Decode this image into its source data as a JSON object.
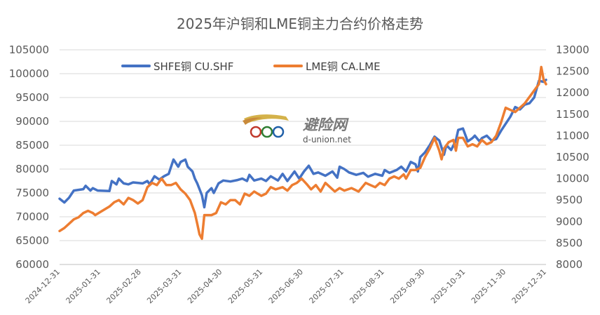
{
  "chart_data": {
    "type": "line",
    "title": "2025年沪铜和LME铜主力合约价格走势",
    "x": [
      "2024-12-31",
      "2025-01-31",
      "2025-02-28",
      "2025-03-31",
      "2025-04-30",
      "2025-05-31",
      "2025-06-30",
      "2025-07-31",
      "2025-08-31",
      "2025-09-30",
      "2025-10-31",
      "2025-11-30",
      "2025-12-31"
    ],
    "y_left": {
      "ylim": [
        60000,
        105000
      ],
      "ticks": [
        "60000",
        "65000",
        "70000",
        "75000",
        "80000",
        "85000",
        "90000",
        "95000",
        "100000",
        "105000"
      ]
    },
    "y_right": {
      "ylim": [
        8000,
        13000
      ],
      "ticks": [
        "8000",
        "8500",
        "9000",
        "9500",
        "10000",
        "10500",
        "11000",
        "11500",
        "12000",
        "12500",
        "13000"
      ]
    },
    "legend_position": "top-left",
    "grid": "horizontal",
    "series": [
      {
        "name": "SHFE铜 CU.SHF",
        "axis": "left",
        "color": "#4472C4",
        "points": [
          [
            0,
            73800
          ],
          [
            2,
            73000
          ],
          [
            4,
            74000
          ],
          [
            6,
            75500
          ],
          [
            10,
            75800
          ],
          [
            11,
            76500
          ],
          [
            13,
            75500
          ],
          [
            14,
            76000
          ],
          [
            16,
            75500
          ],
          [
            21,
            75400
          ],
          [
            22,
            77500
          ],
          [
            24,
            76800
          ],
          [
            25,
            78000
          ],
          [
            27,
            77000
          ],
          [
            29,
            76800
          ],
          [
            31,
            77200
          ],
          [
            35,
            77000
          ],
          [
            37,
            77500
          ],
          [
            38,
            76800
          ],
          [
            40,
            78500
          ],
          [
            42,
            77800
          ],
          [
            44,
            78500
          ],
          [
            46,
            79000
          ],
          [
            48,
            82000
          ],
          [
            50,
            80500
          ],
          [
            51,
            81500
          ],
          [
            53,
            82000
          ],
          [
            54,
            80500
          ],
          [
            55,
            80000
          ],
          [
            56,
            79500
          ],
          [
            57,
            78000
          ],
          [
            58,
            77000
          ],
          [
            60,
            74500
          ],
          [
            61,
            72000
          ],
          [
            62,
            75000
          ],
          [
            63,
            75500
          ],
          [
            64,
            76000
          ],
          [
            65,
            75000
          ],
          [
            67,
            77000
          ],
          [
            69,
            77600
          ],
          [
            72,
            77400
          ],
          [
            75,
            77700
          ],
          [
            77,
            78000
          ],
          [
            79,
            77500
          ],
          [
            80,
            78800
          ],
          [
            82,
            77600
          ],
          [
            85,
            78000
          ],
          [
            87,
            77500
          ],
          [
            89,
            78500
          ],
          [
            92,
            77600
          ],
          [
            94,
            79000
          ],
          [
            96,
            77500
          ],
          [
            99,
            79500
          ],
          [
            101,
            78000
          ],
          [
            103,
            79500
          ],
          [
            105,
            80700
          ],
          [
            107,
            79000
          ],
          [
            109,
            79300
          ],
          [
            112,
            78600
          ],
          [
            115,
            79500
          ],
          [
            117,
            78200
          ],
          [
            118,
            80500
          ],
          [
            120,
            80000
          ],
          [
            122,
            79300
          ],
          [
            125,
            78800
          ],
          [
            128,
            79200
          ],
          [
            130,
            78400
          ],
          [
            133,
            79000
          ],
          [
            136,
            78600
          ],
          [
            137,
            79800
          ],
          [
            139,
            79200
          ],
          [
            142,
            79800
          ],
          [
            144,
            80500
          ],
          [
            146,
            79500
          ],
          [
            148,
            81500
          ],
          [
            150,
            81000
          ],
          [
            151,
            79500
          ],
          [
            152,
            82500
          ],
          [
            154,
            83500
          ],
          [
            156,
            85000
          ],
          [
            158,
            86800
          ],
          [
            160,
            86000
          ],
          [
            161,
            84500
          ],
          [
            162,
            83000
          ],
          [
            163,
            85000
          ],
          [
            165,
            84000
          ],
          [
            167,
            86000
          ],
          [
            168,
            88200
          ],
          [
            170,
            88500
          ],
          [
            172,
            85800
          ],
          [
            174,
            86500
          ],
          [
            175,
            87000
          ],
          [
            177,
            85800
          ],
          [
            178,
            86500
          ],
          [
            180,
            87000
          ],
          [
            182,
            86000
          ],
          [
            184,
            86300
          ],
          [
            186,
            88000
          ],
          [
            188,
            89500
          ],
          [
            190,
            91000
          ],
          [
            192,
            93000
          ],
          [
            194,
            92500
          ],
          [
            196,
            93500
          ],
          [
            198,
            93800
          ],
          [
            200,
            95000
          ],
          [
            202,
            98500
          ],
          [
            204,
            98300
          ],
          [
            205,
            98700
          ]
        ]
      },
      {
        "name": "LME铜 CA.LME",
        "axis": "right",
        "color": "#ED7D31",
        "points": [
          [
            0,
            8780
          ],
          [
            2,
            8850
          ],
          [
            4,
            8950
          ],
          [
            6,
            9050
          ],
          [
            8,
            9100
          ],
          [
            10,
            9200
          ],
          [
            12,
            9250
          ],
          [
            14,
            9200
          ],
          [
            15,
            9150
          ],
          [
            18,
            9250
          ],
          [
            21,
            9350
          ],
          [
            23,
            9450
          ],
          [
            25,
            9500
          ],
          [
            27,
            9400
          ],
          [
            29,
            9550
          ],
          [
            31,
            9500
          ],
          [
            33,
            9420
          ],
          [
            35,
            9500
          ],
          [
            37,
            9800
          ],
          [
            39,
            9900
          ],
          [
            41,
            9850
          ],
          [
            43,
            10000
          ],
          [
            45,
            9850
          ],
          [
            47,
            9850
          ],
          [
            49,
            9900
          ],
          [
            51,
            9750
          ],
          [
            53,
            9650
          ],
          [
            55,
            9500
          ],
          [
            57,
            9200
          ],
          [
            58,
            8950
          ],
          [
            59,
            8700
          ],
          [
            60,
            8600
          ],
          [
            61,
            9150
          ],
          [
            62,
            9150
          ],
          [
            64,
            9150
          ],
          [
            66,
            9200
          ],
          [
            68,
            9450
          ],
          [
            70,
            9400
          ],
          [
            72,
            9500
          ],
          [
            74,
            9500
          ],
          [
            76,
            9400
          ],
          [
            78,
            9650
          ],
          [
            80,
            9600
          ],
          [
            82,
            9700
          ],
          [
            85,
            9600
          ],
          [
            87,
            9650
          ],
          [
            89,
            9800
          ],
          [
            91,
            9750
          ],
          [
            94,
            9800
          ],
          [
            96,
            9720
          ],
          [
            98,
            9850
          ],
          [
            100,
            9900
          ],
          [
            102,
            10000
          ],
          [
            104,
            9880
          ],
          [
            106,
            9750
          ],
          [
            108,
            9850
          ],
          [
            110,
            9700
          ],
          [
            112,
            9900
          ],
          [
            114,
            9800
          ],
          [
            116,
            9700
          ],
          [
            118,
            9780
          ],
          [
            120,
            9720
          ],
          [
            123,
            9780
          ],
          [
            126,
            9700
          ],
          [
            129,
            9900
          ],
          [
            131,
            9850
          ],
          [
            133,
            9800
          ],
          [
            135,
            9900
          ],
          [
            137,
            9850
          ],
          [
            139,
            10000
          ],
          [
            141,
            10050
          ],
          [
            143,
            10000
          ],
          [
            145,
            10100
          ],
          [
            146,
            10000
          ],
          [
            148,
            10200
          ],
          [
            150,
            10200
          ],
          [
            152,
            10250
          ],
          [
            154,
            10500
          ],
          [
            156,
            10700
          ],
          [
            158,
            10950
          ],
          [
            160,
            10650
          ],
          [
            161,
            10450
          ],
          [
            162,
            10700
          ],
          [
            164,
            10850
          ],
          [
            166,
            10900
          ],
          [
            167,
            10650
          ],
          [
            168,
            10950
          ],
          [
            170,
            10950
          ],
          [
            172,
            10750
          ],
          [
            174,
            10800
          ],
          [
            176,
            10750
          ],
          [
            178,
            10900
          ],
          [
            180,
            10800
          ],
          [
            182,
            10850
          ],
          [
            184,
            11000
          ],
          [
            186,
            11300
          ],
          [
            188,
            11650
          ],
          [
            190,
            11600
          ],
          [
            192,
            11550
          ],
          [
            194,
            11650
          ],
          [
            196,
            11750
          ],
          [
            198,
            11900
          ],
          [
            200,
            12050
          ],
          [
            202,
            12200
          ],
          [
            203,
            12600
          ],
          [
            204,
            12300
          ],
          [
            205,
            12200
          ]
        ]
      }
    ]
  },
  "watermark": {
    "text": "避险网",
    "url": "d-union.net",
    "logo_icon": "ddd-logo-icon"
  }
}
